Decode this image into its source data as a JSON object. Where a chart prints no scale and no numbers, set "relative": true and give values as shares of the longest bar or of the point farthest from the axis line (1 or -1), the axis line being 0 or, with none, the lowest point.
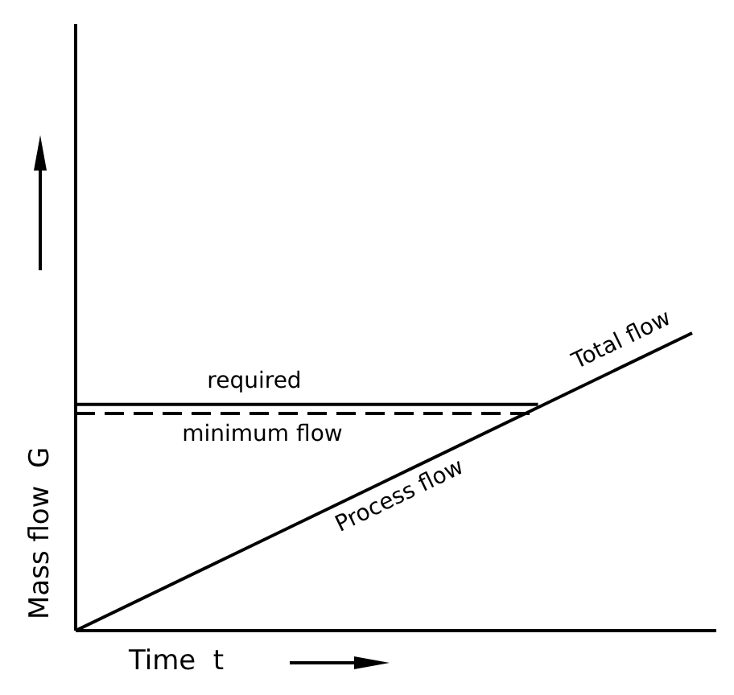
{
  "chart_data": {
    "type": "line",
    "relative": true,
    "xlabel": "Time  t",
    "ylabel": "Mass flow  G",
    "categories": [
      null,
      null,
      null,
      null,
      null
    ],
    "tick_labels": false,
    "grid": false,
    "legend": false,
    "marker": "none",
    "series": [
      {
        "color": "#000000",
        "line_style": "solid",
        "values": [
          0,
          0.25,
          0.5,
          0.75,
          1
        ]
      },
      {
        "color": "#000000",
        "line_style": "solid",
        "values": [
          0.76,
          0.76,
          0.76,
          0.76,
          null
        ]
      },
      {
        "color": "#000000",
        "line_style": "dashed",
        "values": [
          0.73,
          0.73,
          0.73,
          0.73,
          null
        ]
      }
    ],
    "annotations": [
      "required",
      "minimum flow",
      "Process flow",
      "Total flow"
    ]
  }
}
